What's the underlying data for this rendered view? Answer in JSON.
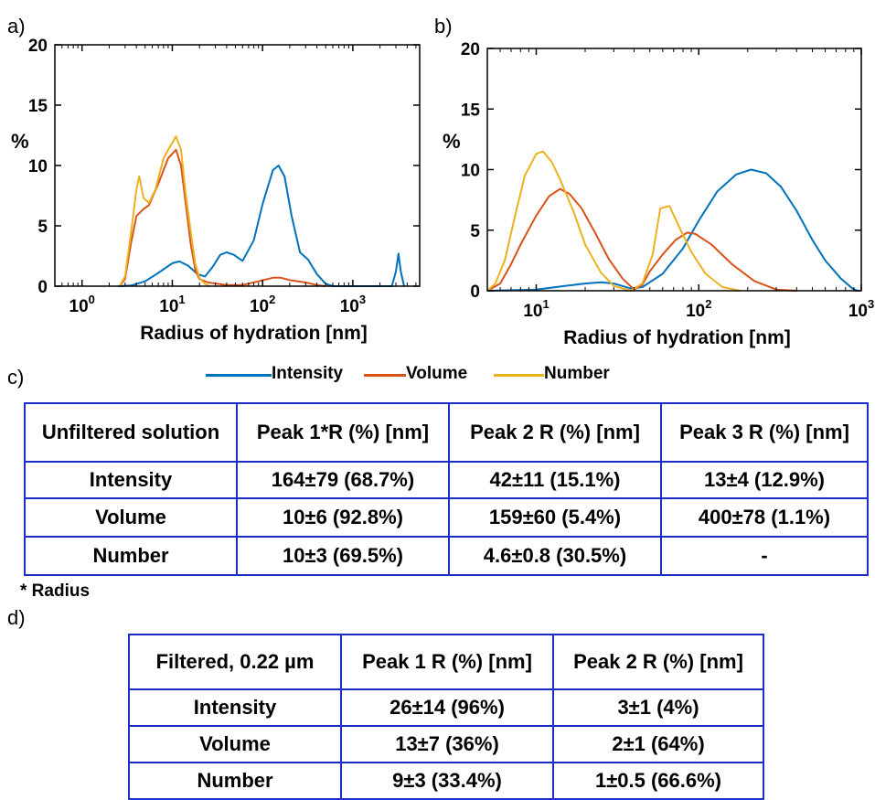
{
  "panels": {
    "a": "a)",
    "b": "b)",
    "c": "c)",
    "d": "d)"
  },
  "chart_data": [
    {
      "type": "line",
      "ylabel": "%",
      "xlabel": "Radius of hydration [nm]",
      "x_scale": "log",
      "xlim": [
        0.5,
        5500
      ],
      "ylim": [
        0,
        20
      ],
      "y_ticks": [
        "0",
        "5",
        "10",
        "15",
        "20"
      ],
      "x_ticks": [
        {
          "base": "10",
          "exp": "0"
        },
        {
          "base": "10",
          "exp": "1"
        },
        {
          "base": "10",
          "exp": "2"
        },
        {
          "base": "10",
          "exp": "3"
        }
      ],
      "x_tick_values": [
        1,
        10,
        100,
        1000
      ],
      "series": [
        {
          "name": "Intensity",
          "color": "#0072bd",
          "points": [
            [
              2.5,
              0
            ],
            [
              3.5,
              0.05
            ],
            [
              5,
              0.4
            ],
            [
              7,
              1.1
            ],
            [
              10,
              1.9
            ],
            [
              12,
              2.05
            ],
            [
              15,
              1.7
            ],
            [
              19,
              1.0
            ],
            [
              23,
              0.8
            ],
            [
              28,
              1.6
            ],
            [
              34,
              2.6
            ],
            [
              40,
              2.8
            ],
            [
              48,
              2.6
            ],
            [
              60,
              2.1
            ],
            [
              80,
              3.8
            ],
            [
              100,
              6.8
            ],
            [
              130,
              9.6
            ],
            [
              150,
              10.0
            ],
            [
              175,
              9.1
            ],
            [
              210,
              5.8
            ],
            [
              260,
              2.8
            ],
            [
              320,
              2.2
            ],
            [
              400,
              1.0
            ],
            [
              500,
              0.2
            ],
            [
              600,
              0
            ],
            [
              2700,
              0
            ],
            [
              3000,
              1.2
            ],
            [
              3200,
              2.7
            ],
            [
              3400,
              1.2
            ],
            [
              3700,
              0
            ]
          ]
        },
        {
          "name": "Volume",
          "color": "#d95319",
          "points": [
            [
              2.6,
              0
            ],
            [
              3,
              0.6
            ],
            [
              3.5,
              3.6
            ],
            [
              4,
              5.8
            ],
            [
              4.8,
              6.4
            ],
            [
              5.5,
              6.7
            ],
            [
              7,
              8.5
            ],
            [
              9,
              10.6
            ],
            [
              11,
              11.3
            ],
            [
              12.5,
              10.0
            ],
            [
              14,
              7.0
            ],
            [
              16,
              3.5
            ],
            [
              18,
              1.3
            ],
            [
              20,
              0.6
            ],
            [
              25,
              0.3
            ],
            [
              40,
              0.1
            ],
            [
              60,
              0.1
            ],
            [
              90,
              0.4
            ],
            [
              130,
              0.7
            ],
            [
              160,
              0.7
            ],
            [
              200,
              0.5
            ],
            [
              300,
              0.3
            ],
            [
              400,
              0.1
            ],
            [
              500,
              0
            ]
          ]
        },
        {
          "name": "Number",
          "color": "#edb120",
          "points": [
            [
              2.6,
              0
            ],
            [
              3,
              0.8
            ],
            [
              3.5,
              4.5
            ],
            [
              4,
              8.0
            ],
            [
              4.3,
              9.1
            ],
            [
              4.8,
              7.3
            ],
            [
              5.5,
              6.9
            ],
            [
              6.5,
              8.0
            ],
            [
              8,
              10.6
            ],
            [
              9,
              11.3
            ],
            [
              11,
              12.4
            ],
            [
              12.5,
              11.3
            ],
            [
              14,
              7.8
            ],
            [
              16,
              4.5
            ],
            [
              18,
              1.8
            ],
            [
              20,
              0.7
            ],
            [
              23,
              0.2
            ],
            [
              26,
              0
            ]
          ]
        }
      ]
    },
    {
      "type": "line",
      "ylabel": "%",
      "xlabel": "Radius of hydration [nm]",
      "x_scale": "log",
      "xlim": [
        5,
        1000
      ],
      "ylim": [
        0,
        20
      ],
      "y_ticks": [
        "0",
        "5",
        "10",
        "15",
        "20"
      ],
      "x_ticks": [
        {
          "base": "10",
          "exp": "1"
        },
        {
          "base": "10",
          "exp": "2"
        },
        {
          "base": "10",
          "exp": "3"
        }
      ],
      "x_tick_values": [
        10,
        100,
        1000
      ],
      "series": [
        {
          "name": "Intensity",
          "color": "#0072bd",
          "points": [
            [
              5,
              0
            ],
            [
              10,
              0.1
            ],
            [
              15,
              0.4
            ],
            [
              20,
              0.6
            ],
            [
              25,
              0.7
            ],
            [
              30,
              0.6
            ],
            [
              38,
              0.2
            ],
            [
              45,
              0.3
            ],
            [
              60,
              1.4
            ],
            [
              80,
              3.5
            ],
            [
              100,
              5.8
            ],
            [
              130,
              8.2
            ],
            [
              170,
              9.6
            ],
            [
              210,
              10.0
            ],
            [
              260,
              9.7
            ],
            [
              320,
              8.6
            ],
            [
              400,
              6.6
            ],
            [
              500,
              4.2
            ],
            [
              600,
              2.5
            ],
            [
              750,
              1.0
            ],
            [
              880,
              0.2
            ],
            [
              950,
              0
            ]
          ]
        },
        {
          "name": "Volume",
          "color": "#d95319",
          "points": [
            [
              5,
              0
            ],
            [
              6,
              0.6
            ],
            [
              7,
              2.2
            ],
            [
              8,
              3.8
            ],
            [
              10,
              6.2
            ],
            [
              12,
              7.8
            ],
            [
              14,
              8.4
            ],
            [
              16,
              8.0
            ],
            [
              19,
              6.8
            ],
            [
              23,
              4.8
            ],
            [
              28,
              2.6
            ],
            [
              34,
              1.0
            ],
            [
              40,
              0.1
            ],
            [
              45,
              0.5
            ],
            [
              50,
              1.6
            ],
            [
              60,
              3.0
            ],
            [
              72,
              4.2
            ],
            [
              85,
              4.8
            ],
            [
              95,
              4.7
            ],
            [
              120,
              3.8
            ],
            [
              160,
              2.2
            ],
            [
              220,
              0.8
            ],
            [
              300,
              0.1
            ],
            [
              400,
              0
            ]
          ]
        },
        {
          "name": "Number",
          "color": "#edb120",
          "points": [
            [
              5,
              0
            ],
            [
              5.6,
              0.6
            ],
            [
              6.4,
              2.5
            ],
            [
              7.5,
              6.5
            ],
            [
              8.5,
              9.5
            ],
            [
              10,
              11.3
            ],
            [
              11,
              11.5
            ],
            [
              12.5,
              10.6
            ],
            [
              14,
              9.2
            ],
            [
              17,
              6.5
            ],
            [
              20,
              3.8
            ],
            [
              25,
              1.5
            ],
            [
              30,
              0.4
            ],
            [
              38,
              0
            ],
            [
              45,
              0.6
            ],
            [
              52,
              3.0
            ],
            [
              58,
              6.8
            ],
            [
              66,
              7.0
            ],
            [
              75,
              5.4
            ],
            [
              90,
              3.2
            ],
            [
              110,
              1.4
            ],
            [
              140,
              0.3
            ],
            [
              180,
              0
            ]
          ]
        }
      ]
    }
  ],
  "legend": [
    {
      "label": "Intensity",
      "color": "#0072bd"
    },
    {
      "label": "Volume",
      "color": "#d95319"
    },
    {
      "label": "Number",
      "color": "#edb120"
    }
  ],
  "table_unfiltered": {
    "header": [
      "Unfiltered solution",
      "Peak 1*R (%) [nm]",
      "Peak 2 R (%) [nm]",
      "Peak 3 R (%) [nm]"
    ],
    "rows": [
      [
        "Intensity",
        "164±79 (68.7%)",
        "42±11 (15.1%)",
        "13±4 (12.9%)"
      ],
      [
        "Volume",
        "10±6 (92.8%)",
        "159±60 (5.4%)",
        "400±78 (1.1%)"
      ],
      [
        "Number",
        "10±3 (69.5%)",
        "4.6±0.8 (30.5%)",
        "-"
      ]
    ],
    "footnote": "* Radius"
  },
  "table_filtered": {
    "header": [
      "Filtered, 0.22 µm",
      "Peak 1 R (%) [nm]",
      "Peak 2 R (%) [nm]"
    ],
    "rows": [
      [
        "Intensity",
        "26±14 (96%)",
        "3±1 (4%)"
      ],
      [
        "Volume",
        "13±7 (36%)",
        "2±1 (64%)"
      ],
      [
        "Number",
        "9±3 (33.4%)",
        "1±0.5 (66.6%)"
      ]
    ]
  },
  "border_color": "#1c2ec7"
}
